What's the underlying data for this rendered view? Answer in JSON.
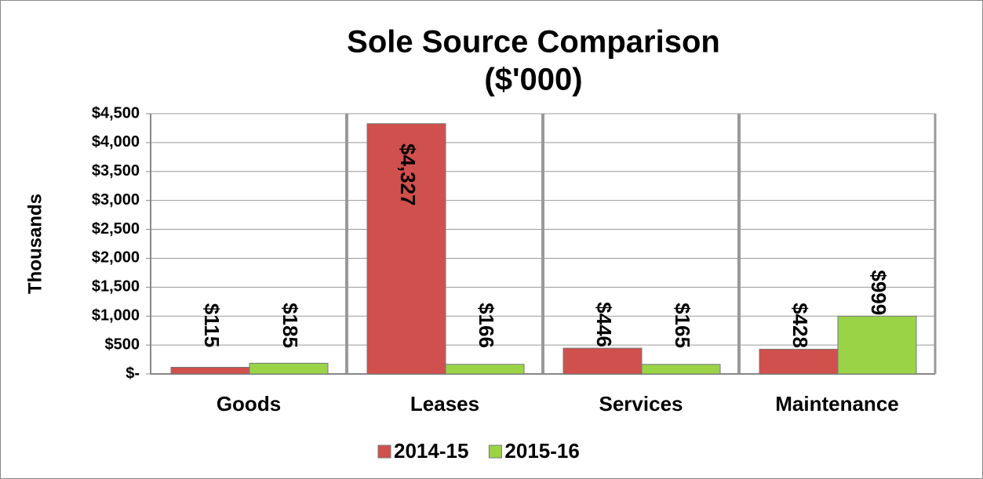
{
  "chart_data": {
    "type": "bar",
    "title": "Sole Source Comparison",
    "subtitle": "($'000)",
    "y_label": "Thousands",
    "categories": [
      "Goods",
      "Leases",
      "Services",
      "Maintenance"
    ],
    "series": [
      {
        "name": "2014-15",
        "color": "#d0504d",
        "values": [
          115,
          4327,
          446,
          428
        ],
        "value_labels": [
          "$115",
          "$4,327",
          "$446",
          "$428"
        ]
      },
      {
        "name": "2015-16",
        "color": "#9ad446",
        "values": [
          185,
          166,
          165,
          999
        ],
        "value_labels": [
          "$185",
          "$166",
          "$165",
          "$999"
        ]
      }
    ],
    "ylim": [
      0,
      4500
    ],
    "yticks": [
      {
        "value": 0,
        "label": "$-"
      },
      {
        "value": 500,
        "label": "$500"
      },
      {
        "value": 1000,
        "label": "$1,000"
      },
      {
        "value": 1500,
        "label": "$1,500"
      },
      {
        "value": 2000,
        "label": "$2,000"
      },
      {
        "value": 2500,
        "label": "$2,500"
      },
      {
        "value": 3000,
        "label": "$3,000"
      },
      {
        "value": 3500,
        "label": "$3,500"
      },
      {
        "value": 4000,
        "label": "$4,000"
      },
      {
        "value": 4500,
        "label": "$4,500"
      }
    ],
    "grid": true,
    "legend": "bottom"
  }
}
